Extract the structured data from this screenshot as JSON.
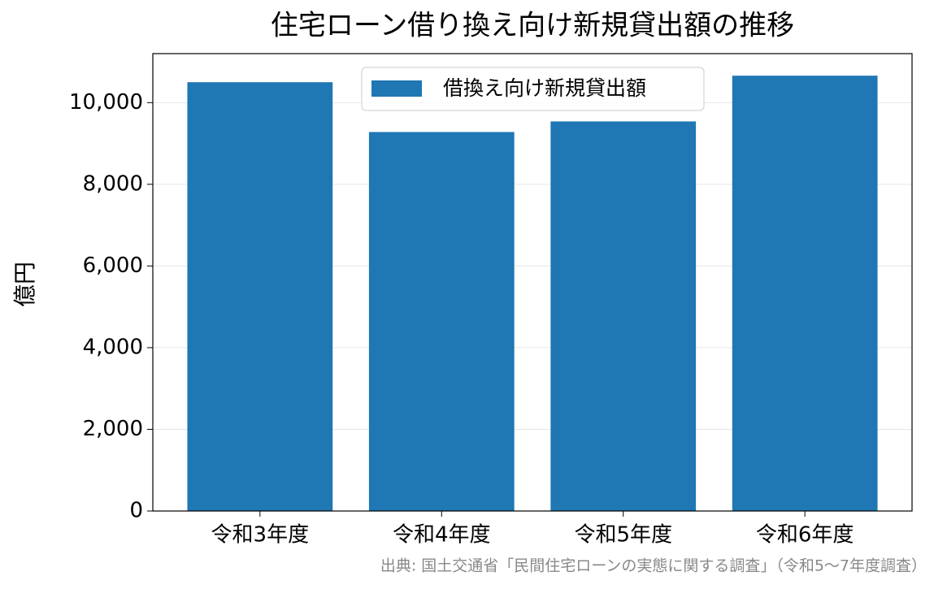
{
  "chart_data": {
    "type": "bar",
    "title": "住宅ローン借り換え向け新規貸出額の推移",
    "categories": [
      "令和3年度",
      "令和4年度",
      "令和5年度",
      "令和6年度"
    ],
    "series": [
      {
        "name": "借換え向け新規貸出額",
        "color": "#1f77b4",
        "values": [
          10500,
          9280,
          9540,
          10660
        ]
      }
    ],
    "y_label": "億円",
    "ylim": [
      0,
      11200
    ],
    "yticks": [
      0,
      {
        "value": 2000,
        "label": "2,000"
      },
      {
        "value": 4000,
        "label": "4,000"
      },
      {
        "value": 6000,
        "label": "6,000"
      },
      {
        "value": 8000,
        "label": "8,000"
      },
      {
        "value": 10000,
        "label": "10,000"
      }
    ],
    "grid": true,
    "legend": "upper center",
    "source": "出典: 国土交通省「民間住宅ローンの実態に関する調査」（令和5〜7年度調査）"
  }
}
